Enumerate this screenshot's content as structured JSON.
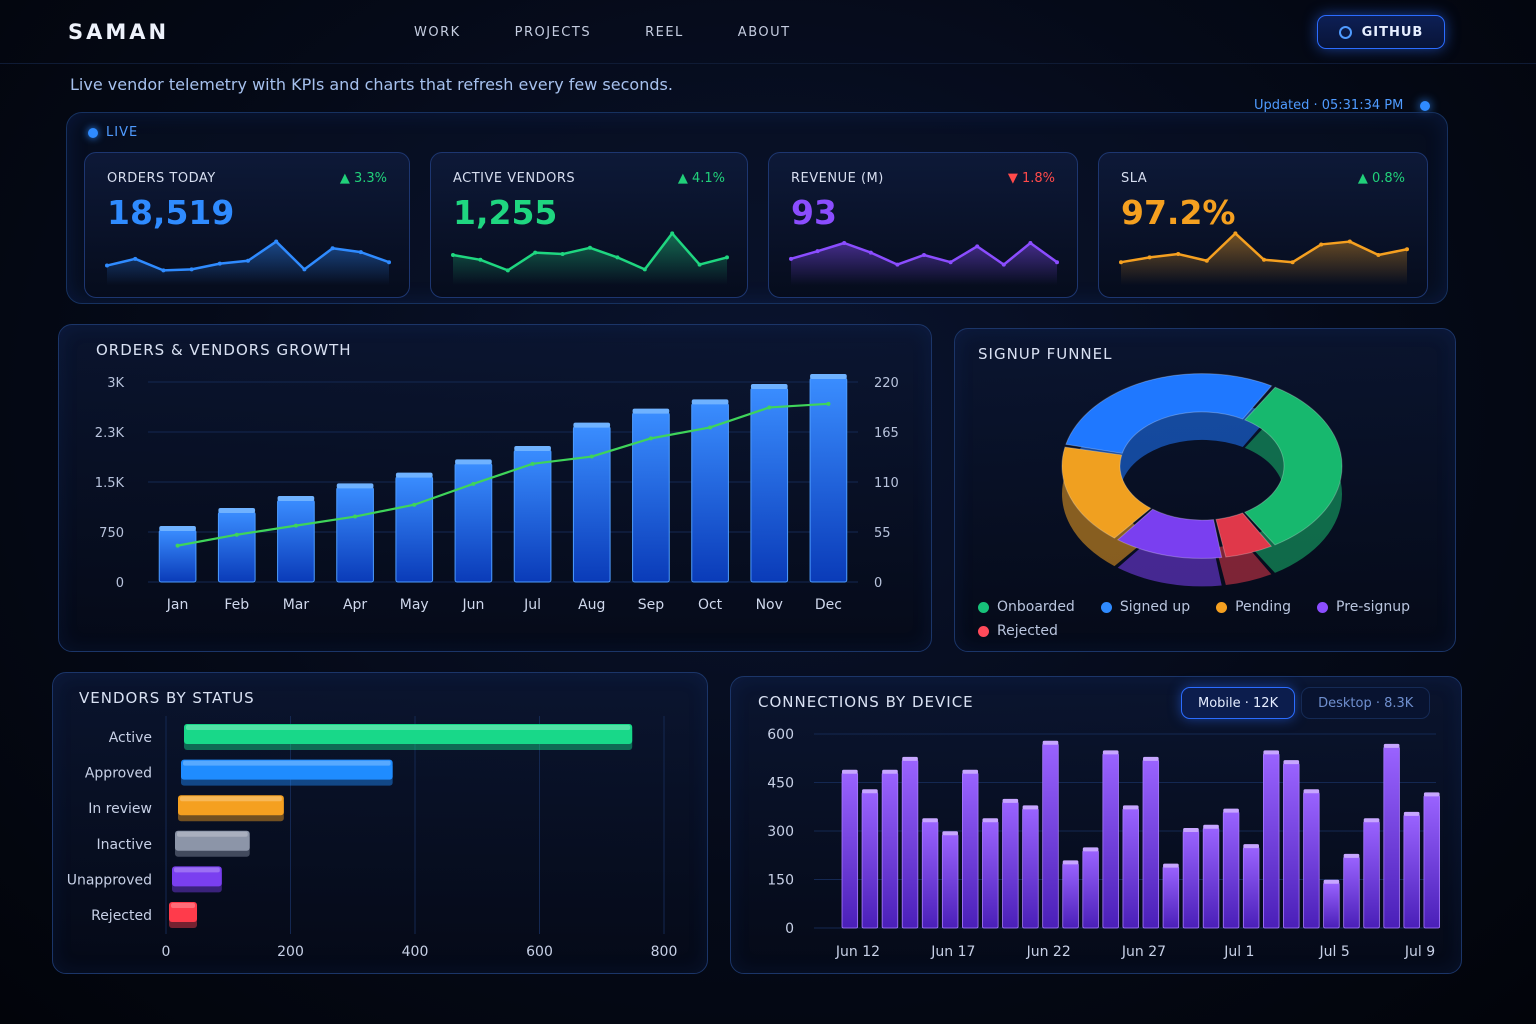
{
  "nav": {
    "brand": "SAMAN",
    "links": [
      "WORK",
      "PROJECTS",
      "REEL",
      "ABOUT"
    ],
    "github_label": "GITHUB"
  },
  "tagline": "Live vendor telemetry with KPIs and charts that refresh every few seconds.",
  "updated": "Updated · 05:31:34 PM",
  "live_label": "LIVE",
  "kpis": [
    {
      "label": "ORDERS TODAY",
      "value": "18,519",
      "delta": "▲ 3.3%",
      "color": "#2f8bff",
      "delta_color": "#21d07a",
      "spark": [
        0.28,
        0.42,
        0.18,
        0.2,
        0.32,
        0.38,
        0.78,
        0.2,
        0.64,
        0.56,
        0.35
      ]
    },
    {
      "label": "ACTIVE VENDORS",
      "value": "1,255",
      "delta": "▲ 4.1%",
      "color": "#1fd680",
      "delta_color": "#21d07a",
      "spark": [
        0.5,
        0.4,
        0.18,
        0.55,
        0.52,
        0.65,
        0.45,
        0.2,
        0.95,
        0.3,
        0.45
      ]
    },
    {
      "label": "REVENUE (M)",
      "value": "93",
      "delta": "▼ 1.8%",
      "color": "#8b4dff",
      "delta_color": "#ff4a4a",
      "spark": [
        0.42,
        0.58,
        0.75,
        0.55,
        0.3,
        0.5,
        0.35,
        0.68,
        0.3,
        0.75,
        0.35
      ]
    },
    {
      "label": "SLA",
      "value": "97.2%",
      "delta": "▲ 0.8%",
      "color": "#f5a020",
      "delta_color": "#21d07a",
      "spark": [
        0.35,
        0.45,
        0.52,
        0.38,
        0.95,
        0.4,
        0.35,
        0.72,
        0.78,
        0.5,
        0.62
      ]
    }
  ],
  "growth": {
    "title": "ORDERS & VENDORS GROWTH",
    "chart_data": {
      "type": "bar",
      "categories": [
        "Jan",
        "Feb",
        "Mar",
        "Apr",
        "May",
        "Jun",
        "Jul",
        "Aug",
        "Sep",
        "Oct",
        "Nov",
        "Dec"
      ],
      "series": [
        {
          "axis": "left",
          "type": "bar",
          "values": [
            780,
            1050,
            1230,
            1420,
            1580,
            1780,
            1980,
            2330,
            2540,
            2680,
            2910,
            3060
          ]
        },
        {
          "axis": "right",
          "type": "line",
          "values": [
            40,
            52,
            62,
            72,
            85,
            108,
            130,
            138,
            158,
            170,
            192,
            196
          ]
        }
      ],
      "left_ticks": [
        "0",
        "750",
        "1.5K",
        "2.3K",
        "3K"
      ],
      "right_ticks": [
        "0",
        "55",
        "110",
        "165",
        "220"
      ],
      "ylim_left": [
        0,
        3000
      ],
      "ylim_right": [
        0,
        220
      ],
      "colors": {
        "bar": "#1f6fff",
        "line": "#3fd45a"
      }
    }
  },
  "funnel": {
    "title": "SIGNUP FUNNEL",
    "chart_data": {
      "type": "pie",
      "labels": [
        "Onboarded",
        "Rejected",
        "Pre-signup",
        "Pending",
        "Signed up"
      ],
      "values": [
        33,
        6,
        13,
        18,
        30
      ],
      "colors": [
        "#17b86e",
        "#e0384a",
        "#7a3ff0",
        "#f0a020",
        "#1f78ff"
      ]
    },
    "legend": [
      {
        "label": "Onboarded",
        "color": "#17c27a"
      },
      {
        "label": "Signed up",
        "color": "#2f8bff"
      },
      {
        "label": "Pending",
        "color": "#f5a020"
      },
      {
        "label": "Pre-signup",
        "color": "#8b4dff"
      },
      {
        "label": "Rejected",
        "color": "#ff4a5a"
      }
    ]
  },
  "status": {
    "title": "VENDORS BY STATUS",
    "chart_data": {
      "type": "bar",
      "orientation": "horizontal",
      "categories": [
        "Active",
        "Approved",
        "In review",
        "Inactive",
        "Unapproved",
        "Rejected"
      ],
      "values": [
        720,
        340,
        170,
        120,
        80,
        45
      ],
      "colors": [
        "#18d889",
        "#1f8cff",
        "#f5a020",
        "#8c95a8",
        "#7a3ff0",
        "#ff3b4b"
      ],
      "xticks": [
        "0",
        "200",
        "400",
        "600",
        "800"
      ],
      "xlim": [
        0,
        800
      ]
    }
  },
  "connections": {
    "title": "CONNECTIONS BY DEVICE",
    "tabs": [
      {
        "label": "Mobile · 12K",
        "active": true
      },
      {
        "label": "Desktop · 8.3K",
        "active": false
      }
    ],
    "chart_data": {
      "type": "bar",
      "x_ticks": [
        "Jun 12",
        "Jun 17",
        "Jun 22",
        "Jun 27",
        "Jul 1",
        "Jul 5",
        "Jul 9"
      ],
      "values": [
        480,
        420,
        480,
        520,
        330,
        290,
        480,
        330,
        390,
        370,
        570,
        200,
        240,
        540,
        370,
        520,
        190,
        300,
        310,
        360,
        250,
        540,
        510,
        420,
        140,
        220,
        330,
        560,
        350,
        410
      ],
      "yticks": [
        "0",
        "150",
        "300",
        "450",
        "600"
      ],
      "ylim": [
        0,
        600
      ],
      "color": "#7a3ff0"
    }
  }
}
